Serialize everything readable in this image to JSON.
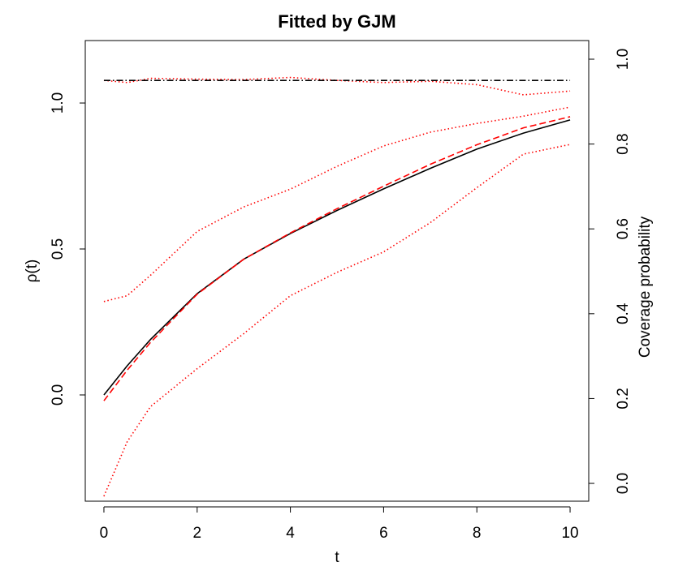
{
  "chart_data": {
    "type": "line",
    "title": "Fitted by GJM",
    "xlabel": "t",
    "ylabel": "ρ(t)",
    "y2label": "Coverage probability",
    "x": [
      0,
      0.5,
      1,
      2,
      3,
      4,
      5,
      6,
      7,
      8,
      9,
      10
    ],
    "xlim": [
      -0.4,
      10.4
    ],
    "xticks": [
      0,
      2,
      4,
      6,
      8,
      10
    ],
    "ylim": [
      -0.364,
      1.214
    ],
    "yticks": [
      {
        "value": 0,
        "label": "0.0"
      },
      {
        "value": 0.5,
        "label": "0.5"
      },
      {
        "value": 1,
        "label": "1.0"
      }
    ],
    "y2lim": [
      -0.042,
      1.044
    ],
    "y2ticks": [
      {
        "value": 0,
        "label": "0.0"
      },
      {
        "value": 0.2,
        "label": "0.2"
      },
      {
        "value": 0.4,
        "label": "0.4"
      },
      {
        "value": 0.6,
        "label": "0.6"
      },
      {
        "value": 0.8,
        "label": "0.8"
      },
      {
        "value": 1,
        "label": "1.0"
      }
    ],
    "series": [
      {
        "color": "#000000",
        "linestyle": "solid",
        "axis": "y",
        "values": [
          0.0,
          0.1,
          0.19,
          0.347,
          0.465,
          0.553,
          0.632,
          0.706,
          0.776,
          0.842,
          0.897,
          0.942
        ]
      },
      {
        "color": "#ff0000",
        "linestyle": "dashed",
        "axis": "y",
        "values": [
          -0.02,
          0.085,
          0.18,
          0.345,
          0.465,
          0.555,
          0.638,
          0.715,
          0.79,
          0.857,
          0.915,
          0.953
        ]
      },
      {
        "color": "#ff0000",
        "linestyle": "dotted",
        "axis": "y",
        "values": [
          0.32,
          0.34,
          0.41,
          0.56,
          0.644,
          0.705,
          0.783,
          0.853,
          0.9,
          0.93,
          0.955,
          0.986
        ]
      },
      {
        "color": "#ff0000",
        "linestyle": "dotted",
        "axis": "y",
        "values": [
          -0.347,
          -0.16,
          -0.04,
          0.09,
          0.21,
          0.34,
          0.42,
          0.49,
          0.59,
          0.71,
          0.825,
          0.858
        ]
      },
      {
        "color": "#ff0000",
        "linestyle": "dotted",
        "axis": "y2",
        "values": [
          0.95,
          0.945,
          0.955,
          0.953,
          0.952,
          0.957,
          0.95,
          0.945,
          0.948,
          0.94,
          0.916,
          0.925
        ]
      },
      {
        "color": "#000000",
        "linestyle": "dashdot",
        "axis": "y2",
        "values": [
          0.95,
          0.95,
          0.95,
          0.95,
          0.95,
          0.95,
          0.95,
          0.95,
          0.95,
          0.95,
          0.95,
          0.95
        ]
      }
    ]
  }
}
